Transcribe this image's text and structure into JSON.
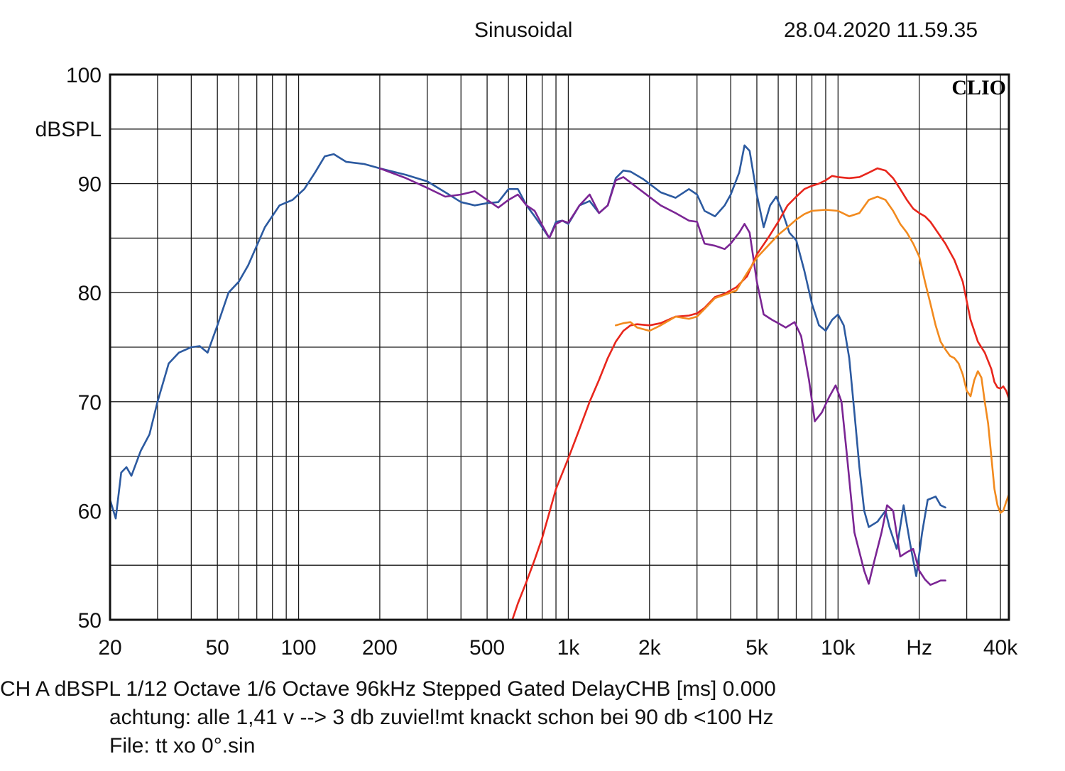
{
  "header": {
    "title": "Sinusoidal",
    "datetime": "28.04.2020 11.59.35"
  },
  "footer": {
    "line1": "CH A   dBSPL    1/12 Octave    1/6 Octave    96kHz    Stepped     Gated     DelayCHB [ms] 0.000",
    "line2": "achtung: alle 1,41 v --> 3 db zuviel!mt knackt schon bei 90 db <100 Hz",
    "line3": "File: tt xo 0°.sin"
  },
  "chart_data": {
    "type": "line",
    "brand": "CLIO",
    "xscale": "log",
    "xlim": [
      20,
      43000
    ],
    "ylim": [
      50,
      100
    ],
    "ylabel": "dBSPL",
    "grid": true,
    "xticks": [
      {
        "value": 20,
        "label": "20"
      },
      {
        "value": 50,
        "label": "50"
      },
      {
        "value": 100,
        "label": "100"
      },
      {
        "value": 200,
        "label": "200"
      },
      {
        "value": 500,
        "label": "500"
      },
      {
        "value": 1000,
        "label": "1k"
      },
      {
        "value": 2000,
        "label": "2k"
      },
      {
        "value": 5000,
        "label": "5k"
      },
      {
        "value": 10000,
        "label": "10k"
      },
      {
        "value": 20000,
        "label": "Hz"
      },
      {
        "value": 40000,
        "label": "40k"
      }
    ],
    "yticks": [
      {
        "value": 100,
        "label": "100"
      },
      {
        "value": 90,
        "label": "90"
      },
      {
        "value": 80,
        "label": "80"
      },
      {
        "value": 70,
        "label": "70"
      },
      {
        "value": 60,
        "label": "60"
      },
      {
        "value": 50,
        "label": "50"
      }
    ],
    "series": [
      {
        "color": "#2c5aa0",
        "points": [
          [
            20,
            61
          ],
          [
            21,
            59.3
          ],
          [
            22,
            63.5
          ],
          [
            23,
            64
          ],
          [
            24,
            63.2
          ],
          [
            26,
            65.5
          ],
          [
            28,
            67
          ],
          [
            30,
            70
          ],
          [
            33,
            73.5
          ],
          [
            36,
            74.5
          ],
          [
            40,
            75
          ],
          [
            43,
            75.1
          ],
          [
            46,
            74.5
          ],
          [
            50,
            77
          ],
          [
            55,
            80
          ],
          [
            60,
            81
          ],
          [
            65,
            82.5
          ],
          [
            75,
            86
          ],
          [
            85,
            88
          ],
          [
            95,
            88.5
          ],
          [
            105,
            89.5
          ],
          [
            115,
            91
          ],
          [
            125,
            92.5
          ],
          [
            135,
            92.7
          ],
          [
            150,
            92
          ],
          [
            175,
            91.8
          ],
          [
            200,
            91.4
          ],
          [
            250,
            90.8
          ],
          [
            300,
            90.2
          ],
          [
            350,
            89.2
          ],
          [
            400,
            88.3
          ],
          [
            450,
            88
          ],
          [
            500,
            88.2
          ],
          [
            550,
            88.3
          ],
          [
            600,
            89.5
          ],
          [
            650,
            89.5
          ],
          [
            700,
            88
          ],
          [
            750,
            87
          ],
          [
            800,
            86
          ],
          [
            850,
            85
          ],
          [
            900,
            86.5
          ],
          [
            950,
            86.6
          ],
          [
            1000,
            86.3
          ],
          [
            1100,
            88
          ],
          [
            1200,
            88.4
          ],
          [
            1300,
            87.3
          ],
          [
            1400,
            88
          ],
          [
            1500,
            90.5
          ],
          [
            1600,
            91.2
          ],
          [
            1700,
            91.1
          ],
          [
            1900,
            90.4
          ],
          [
            2200,
            89.2
          ],
          [
            2500,
            88.7
          ],
          [
            2800,
            89.5
          ],
          [
            3000,
            89
          ],
          [
            3200,
            87.5
          ],
          [
            3500,
            87
          ],
          [
            3800,
            88
          ],
          [
            4000,
            89
          ],
          [
            4300,
            91
          ],
          [
            4500,
            93.5
          ],
          [
            4700,
            93
          ],
          [
            5000,
            89
          ],
          [
            5300,
            86
          ],
          [
            5600,
            88
          ],
          [
            5900,
            88.8
          ],
          [
            6200,
            87.5
          ],
          [
            6600,
            85.5
          ],
          [
            7000,
            84.8
          ],
          [
            7500,
            82
          ],
          [
            8000,
            79
          ],
          [
            8500,
            77
          ],
          [
            9000,
            76.5
          ],
          [
            9500,
            77.5
          ],
          [
            10000,
            78
          ],
          [
            10500,
            77
          ],
          [
            11000,
            74
          ],
          [
            11500,
            69
          ],
          [
            12000,
            64
          ],
          [
            12500,
            60
          ],
          [
            13000,
            58.5
          ],
          [
            14000,
            59
          ],
          [
            15000,
            60
          ],
          [
            15500,
            58.5
          ],
          [
            16500,
            56.5
          ],
          [
            17500,
            60.5
          ],
          [
            18500,
            57
          ],
          [
            19500,
            54
          ],
          [
            20500,
            58
          ],
          [
            21500,
            61
          ],
          [
            23000,
            61.3
          ],
          [
            24000,
            60.5
          ],
          [
            25000,
            60.3
          ]
        ]
      },
      {
        "color": "#7b2594",
        "points": [
          [
            200,
            91.4
          ],
          [
            250,
            90.5
          ],
          [
            300,
            89.6
          ],
          [
            350,
            88.8
          ],
          [
            400,
            89
          ],
          [
            450,
            89.3
          ],
          [
            500,
            88.5
          ],
          [
            550,
            87.8
          ],
          [
            600,
            88.5
          ],
          [
            650,
            89
          ],
          [
            700,
            88
          ],
          [
            750,
            87.5
          ],
          [
            800,
            86.2
          ],
          [
            850,
            85
          ],
          [
            900,
            86.3
          ],
          [
            950,
            86.6
          ],
          [
            1000,
            86.4
          ],
          [
            1100,
            88
          ],
          [
            1200,
            89
          ],
          [
            1300,
            87.3
          ],
          [
            1400,
            88
          ],
          [
            1500,
            90.3
          ],
          [
            1600,
            90.6
          ],
          [
            1700,
            90.1
          ],
          [
            1900,
            89.2
          ],
          [
            2200,
            88
          ],
          [
            2500,
            87.3
          ],
          [
            2800,
            86.6
          ],
          [
            3000,
            86.5
          ],
          [
            3200,
            84.5
          ],
          [
            3500,
            84.3
          ],
          [
            3800,
            84
          ],
          [
            4000,
            84.5
          ],
          [
            4300,
            85.5
          ],
          [
            4500,
            86.3
          ],
          [
            4700,
            85.5
          ],
          [
            5000,
            81
          ],
          [
            5300,
            78
          ],
          [
            5700,
            77.5
          ],
          [
            6000,
            77.2
          ],
          [
            6400,
            76.8
          ],
          [
            6900,
            77.3
          ],
          [
            7300,
            76
          ],
          [
            7800,
            72
          ],
          [
            8200,
            68.2
          ],
          [
            8700,
            69
          ],
          [
            9300,
            70.5
          ],
          [
            9800,
            71.5
          ],
          [
            10300,
            70
          ],
          [
            10800,
            65
          ],
          [
            11500,
            58
          ],
          [
            12500,
            54.5
          ],
          [
            13000,
            53.3
          ],
          [
            13500,
            55
          ],
          [
            14500,
            58
          ],
          [
            15200,
            60.5
          ],
          [
            16000,
            60
          ],
          [
            17000,
            55.8
          ],
          [
            18000,
            56.2
          ],
          [
            19000,
            56.5
          ],
          [
            20000,
            54.5
          ],
          [
            21000,
            53.7
          ],
          [
            22000,
            53.2
          ],
          [
            23000,
            53.4
          ],
          [
            24000,
            53.6
          ],
          [
            25000,
            53.6
          ]
        ]
      },
      {
        "color": "#e8261c",
        "points": [
          [
            620,
            50
          ],
          [
            650,
            51.5
          ],
          [
            700,
            53.5
          ],
          [
            750,
            55.5
          ],
          [
            800,
            57.5
          ],
          [
            850,
            59.8
          ],
          [
            900,
            62
          ],
          [
            1000,
            64.8
          ],
          [
            1100,
            67.5
          ],
          [
            1200,
            70
          ],
          [
            1300,
            72
          ],
          [
            1400,
            74
          ],
          [
            1500,
            75.5
          ],
          [
            1600,
            76.5
          ],
          [
            1700,
            77
          ],
          [
            1800,
            77.1
          ],
          [
            2000,
            77
          ],
          [
            2200,
            77.2
          ],
          [
            2500,
            77.8
          ],
          [
            2800,
            77.9
          ],
          [
            3000,
            78.1
          ],
          [
            3200,
            78.6
          ],
          [
            3500,
            79.6
          ],
          [
            3800,
            79.9
          ],
          [
            4200,
            80.5
          ],
          [
            4600,
            81.5
          ],
          [
            5000,
            83.5
          ],
          [
            5500,
            85
          ],
          [
            6000,
            86.5
          ],
          [
            6500,
            88
          ],
          [
            7000,
            88.8
          ],
          [
            7500,
            89.5
          ],
          [
            8000,
            89.8
          ],
          [
            8500,
            90
          ],
          [
            9000,
            90.3
          ],
          [
            9500,
            90.7
          ],
          [
            10000,
            90.6
          ],
          [
            11000,
            90.5
          ],
          [
            12000,
            90.6
          ],
          [
            13000,
            91
          ],
          [
            14000,
            91.4
          ],
          [
            15000,
            91.2
          ],
          [
            16000,
            90.5
          ],
          [
            17000,
            89.5
          ],
          [
            18000,
            88.5
          ],
          [
            19000,
            87.7
          ],
          [
            20000,
            87.3
          ],
          [
            21000,
            87
          ],
          [
            22000,
            86.5
          ],
          [
            23000,
            85.8
          ],
          [
            25000,
            84.5
          ],
          [
            27000,
            83
          ],
          [
            29000,
            81
          ],
          [
            31000,
            77.5
          ],
          [
            33000,
            75.5
          ],
          [
            35000,
            74.5
          ],
          [
            37000,
            73
          ],
          [
            38000,
            71.8
          ],
          [
            39000,
            71.3
          ],
          [
            40000,
            71.2
          ],
          [
            41000,
            71.4
          ],
          [
            42000,
            71
          ],
          [
            43000,
            70.3
          ]
        ]
      },
      {
        "color": "#f28a1e",
        "points": [
          [
            1500,
            77
          ],
          [
            1600,
            77.2
          ],
          [
            1700,
            77.3
          ],
          [
            1800,
            76.8
          ],
          [
            2000,
            76.5
          ],
          [
            2200,
            77
          ],
          [
            2500,
            77.8
          ],
          [
            2800,
            77.6
          ],
          [
            3000,
            77.8
          ],
          [
            3200,
            78.5
          ],
          [
            3500,
            79.5
          ],
          [
            3800,
            79.8
          ],
          [
            4200,
            80.2
          ],
          [
            4600,
            81.8
          ],
          [
            5000,
            83.2
          ],
          [
            5500,
            84.3
          ],
          [
            6000,
            85.3
          ],
          [
            6500,
            86
          ],
          [
            7000,
            86.7
          ],
          [
            7500,
            87.2
          ],
          [
            8000,
            87.5
          ],
          [
            9000,
            87.6
          ],
          [
            10000,
            87.5
          ],
          [
            11000,
            87
          ],
          [
            12000,
            87.3
          ],
          [
            13000,
            88.5
          ],
          [
            14000,
            88.8
          ],
          [
            15000,
            88.5
          ],
          [
            16000,
            87.5
          ],
          [
            17000,
            86.3
          ],
          [
            18000,
            85.5
          ],
          [
            19000,
            84.5
          ],
          [
            20000,
            83.3
          ],
          [
            21000,
            81
          ],
          [
            22000,
            79
          ],
          [
            23000,
            77
          ],
          [
            24000,
            75.5
          ],
          [
            25000,
            74.8
          ],
          [
            26000,
            74.2
          ],
          [
            27000,
            74
          ],
          [
            28000,
            73.5
          ],
          [
            29000,
            72.5
          ],
          [
            30000,
            71
          ],
          [
            31000,
            70.5
          ],
          [
            32000,
            72
          ],
          [
            33000,
            72.8
          ],
          [
            34000,
            72.2
          ],
          [
            35000,
            70
          ],
          [
            36000,
            68
          ],
          [
            37000,
            65
          ],
          [
            38000,
            62
          ],
          [
            39000,
            60.5
          ],
          [
            40000,
            59.8
          ],
          [
            41000,
            60
          ],
          [
            42000,
            60.8
          ],
          [
            43000,
            61.5
          ]
        ]
      }
    ]
  }
}
